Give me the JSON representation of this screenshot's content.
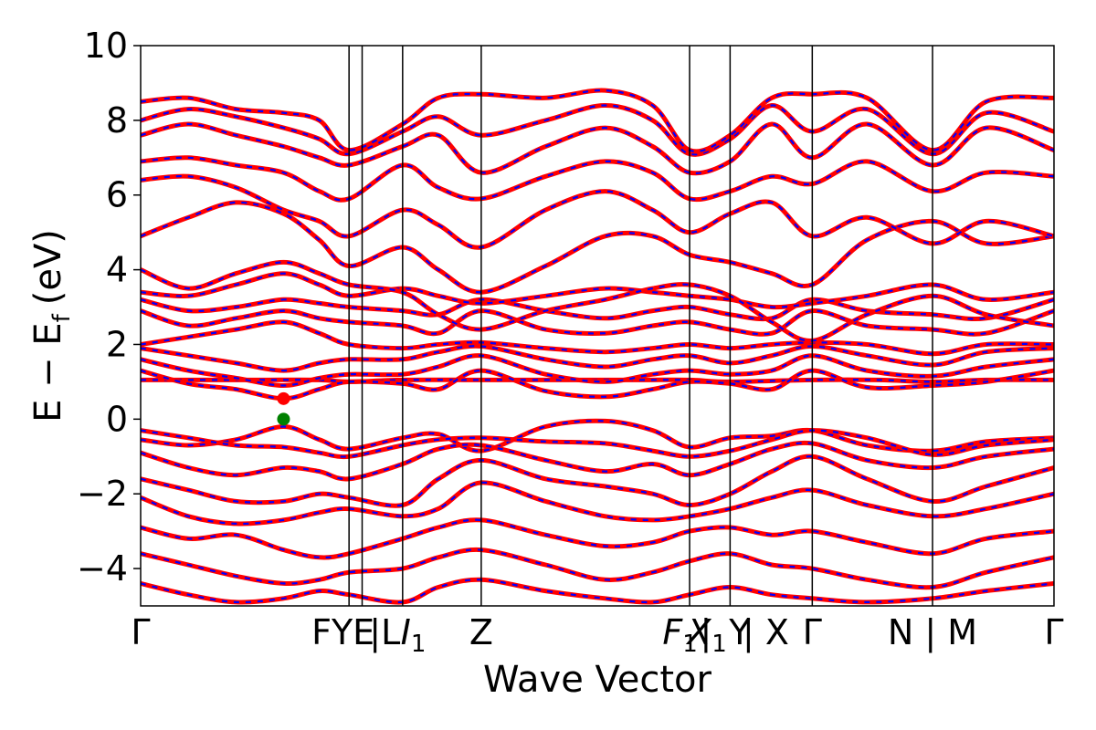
{
  "chart_data": {
    "type": "line",
    "title": "",
    "xlabel": "Wave Vector",
    "ylabel": "E − E",
    "ylabel_sub": "f",
    "ylabel_unit": "(eV)",
    "ylim": [
      -5,
      10
    ],
    "yticks": [
      -4,
      -2,
      0,
      2,
      4,
      6,
      8,
      10
    ],
    "ytick_labels": [
      "−4",
      "−2",
      "0",
      "2",
      "4",
      "6",
      "8",
      "10"
    ],
    "grid": false,
    "legend": "none",
    "colors": {
      "band_solid": "#ff0000",
      "band_dashed": "#0000ff",
      "cbm_marker": "#ff0000",
      "vbm_marker": "#008000",
      "divider": "#000000"
    },
    "kpath_positions": [
      0,
      1.75,
      1.86,
      2.2,
      2.86,
      4.61,
      4.95,
      5.64,
      6.65,
      7.67
    ],
    "kpoint_labels": [
      {
        "pos": 0.0,
        "text": "Γ",
        "sub": ""
      },
      {
        "pos": 1.7,
        "text": "FYE",
        "sub": ""
      },
      {
        "pos": 2.05,
        "text": "|L",
        "sub": ""
      },
      {
        "pos": 2.29,
        "text": "I",
        "sub": "1",
        "italic": true
      },
      {
        "pos": 2.86,
        "text": "Z",
        "sub": ""
      },
      {
        "pos": 4.53,
        "text": "F",
        "sub": "1",
        "italic": true
      },
      {
        "pos": 4.69,
        "text": "X",
        "sub": "",
        "italic": true
      },
      {
        "pos": 4.81,
        "text": "|",
        "sub": "1"
      },
      {
        "pos": 5.03,
        "text": "Y",
        "sub": ""
      },
      {
        "pos": 5.25,
        "text": "| X",
        "sub": ""
      },
      {
        "pos": 5.64,
        "text": "Γ",
        "sub": ""
      },
      {
        "pos": 6.65,
        "text": "N | M",
        "sub": ""
      },
      {
        "pos": 7.67,
        "text": "Γ",
        "sub": ""
      }
    ],
    "bands": [
      {
        "x": [
          0,
          0.4,
          0.8,
          1.2,
          1.5,
          1.75,
          2.2,
          2.5,
          2.86,
          3.4,
          3.9,
          4.3,
          4.61,
          4.95,
          5.3,
          5.64,
          6.1,
          6.65,
          7.1,
          7.67
        ],
        "y": [
          -0.55,
          -0.7,
          -0.55,
          -0.2,
          -0.55,
          -0.8,
          -0.5,
          -0.4,
          -0.85,
          -0.2,
          -0.05,
          -0.3,
          -0.75,
          -0.5,
          -0.45,
          -0.3,
          -0.7,
          -0.85,
          -0.6,
          -0.5
        ]
      },
      {
        "x": [
          0,
          0.4,
          0.8,
          1.2,
          1.5,
          1.75,
          2.2,
          2.5,
          2.86,
          3.4,
          3.9,
          4.3,
          4.61,
          4.95,
          5.3,
          5.64,
          6.1,
          6.65,
          7.1,
          7.67
        ],
        "y": [
          -0.3,
          -0.5,
          -0.7,
          -0.75,
          -0.9,
          -1.0,
          -0.7,
          -0.55,
          -0.5,
          -0.6,
          -0.65,
          -0.85,
          -1.0,
          -0.85,
          -0.55,
          -0.3,
          -0.5,
          -0.95,
          -0.7,
          -0.55
        ]
      },
      {
        "x": [
          0,
          0.4,
          0.8,
          1.2,
          1.5,
          1.75,
          2.2,
          2.5,
          2.86,
          3.4,
          3.9,
          4.3,
          4.61,
          4.95,
          5.3,
          5.64,
          6.1,
          6.65,
          7.1,
          7.67
        ],
        "y": [
          -0.9,
          -1.3,
          -1.5,
          -1.3,
          -1.4,
          -1.6,
          -1.2,
          -0.8,
          -0.7,
          -1.1,
          -1.4,
          -1.2,
          -1.5,
          -1.2,
          -0.8,
          -0.65,
          -1.1,
          -1.3,
          -1.0,
          -0.8
        ]
      },
      {
        "x": [
          0,
          0.4,
          0.8,
          1.2,
          1.5,
          1.75,
          2.2,
          2.5,
          2.86,
          3.4,
          3.9,
          4.3,
          4.61,
          4.95,
          5.3,
          5.64,
          6.1,
          6.65,
          7.1,
          7.67
        ],
        "y": [
          -1.6,
          -1.9,
          -2.2,
          -2.2,
          -2.0,
          -2.1,
          -2.3,
          -1.6,
          -1.1,
          -1.6,
          -1.8,
          -2.0,
          -2.3,
          -2.0,
          -1.4,
          -1.0,
          -1.6,
          -2.2,
          -1.8,
          -1.3
        ]
      },
      {
        "x": [
          0,
          0.4,
          0.8,
          1.2,
          1.5,
          1.75,
          2.2,
          2.5,
          2.86,
          3.4,
          3.9,
          4.3,
          4.61,
          4.95,
          5.3,
          5.64,
          6.1,
          6.65,
          7.1,
          7.67
        ],
        "y": [
          -2.1,
          -2.6,
          -2.8,
          -2.7,
          -2.5,
          -2.4,
          -2.6,
          -2.4,
          -1.7,
          -2.2,
          -2.6,
          -2.7,
          -2.6,
          -2.4,
          -2.1,
          -1.9,
          -2.3,
          -2.6,
          -2.4,
          -2.0
        ]
      },
      {
        "x": [
          0,
          0.4,
          0.8,
          1.2,
          1.5,
          1.75,
          2.2,
          2.5,
          2.86,
          3.4,
          3.9,
          4.3,
          4.61,
          4.95,
          5.3,
          5.64,
          6.1,
          6.65,
          7.1,
          7.67
        ],
        "y": [
          -2.9,
          -3.2,
          -3.1,
          -3.5,
          -3.7,
          -3.6,
          -3.2,
          -2.9,
          -2.7,
          -3.1,
          -3.4,
          -3.3,
          -3.0,
          -2.9,
          -3.1,
          -3.0,
          -3.3,
          -3.6,
          -3.2,
          -3.0
        ]
      },
      {
        "x": [
          0,
          0.4,
          0.8,
          1.2,
          1.5,
          1.75,
          2.2,
          2.5,
          2.86,
          3.4,
          3.9,
          4.3,
          4.61,
          4.95,
          5.3,
          5.64,
          6.1,
          6.65,
          7.1,
          7.67
        ],
        "y": [
          -3.6,
          -3.9,
          -4.2,
          -4.4,
          -4.3,
          -4.1,
          -4.0,
          -3.7,
          -3.5,
          -3.9,
          -4.3,
          -4.1,
          -3.8,
          -3.6,
          -3.9,
          -4.0,
          -4.3,
          -4.5,
          -4.1,
          -3.7
        ]
      },
      {
        "x": [
          0,
          0.4,
          0.8,
          1.2,
          1.5,
          1.75,
          2.2,
          2.5,
          2.86,
          3.4,
          3.9,
          4.3,
          4.61,
          4.95,
          5.3,
          5.64,
          6.1,
          6.65,
          7.1,
          7.67
        ],
        "y": [
          -4.4,
          -4.7,
          -4.9,
          -4.8,
          -4.6,
          -4.7,
          -4.9,
          -4.5,
          -4.3,
          -4.6,
          -4.8,
          -4.9,
          -4.7,
          -4.5,
          -4.7,
          -4.8,
          -4.9,
          -4.8,
          -4.6,
          -4.4
        ]
      },
      {
        "x": [
          0,
          0.5,
          1.0,
          1.5,
          1.75,
          2.2,
          2.86,
          3.5,
          4.2,
          4.61,
          4.95,
          5.64,
          6.2,
          6.65,
          7.1,
          7.67
        ],
        "y": [
          1.05,
          1.05,
          1.05,
          1.05,
          1.0,
          1.05,
          1.05,
          1.05,
          1.05,
          1.05,
          1.0,
          1.05,
          1.05,
          1.0,
          1.05,
          1.05
        ]
      },
      {
        "x": [
          0,
          0.4,
          0.8,
          1.2,
          1.5,
          1.75,
          2.2,
          2.5,
          2.86,
          3.4,
          3.9,
          4.3,
          4.61,
          4.95,
          5.3,
          5.64,
          6.1,
          6.65,
          7.1,
          7.67
        ],
        "y": [
          1.3,
          0.95,
          0.8,
          0.55,
          0.8,
          1.0,
          0.95,
          0.8,
          1.3,
          0.75,
          0.6,
          0.8,
          1.0,
          0.95,
          0.8,
          1.3,
          0.85,
          0.9,
          1.0,
          1.3
        ]
      },
      {
        "x": [
          0,
          0.4,
          0.8,
          1.2,
          1.5,
          1.75,
          2.2,
          2.5,
          2.86,
          3.4,
          3.9,
          4.3,
          4.61,
          4.95,
          5.3,
          5.64,
          6.1,
          6.65,
          7.1,
          7.67
        ],
        "y": [
          1.6,
          1.3,
          1.1,
          0.9,
          1.1,
          1.2,
          1.2,
          1.4,
          1.7,
          1.2,
          1.0,
          1.2,
          1.3,
          1.2,
          1.3,
          1.7,
          1.3,
          1.15,
          1.4,
          1.6
        ]
      },
      {
        "x": [
          0,
          0.4,
          0.8,
          1.2,
          1.5,
          1.75,
          2.2,
          2.5,
          2.86,
          3.4,
          3.9,
          4.3,
          4.61,
          4.95,
          5.3,
          5.64,
          6.1,
          6.65,
          7.1,
          7.67
        ],
        "y": [
          1.9,
          1.7,
          1.5,
          1.3,
          1.5,
          1.6,
          1.6,
          1.8,
          1.95,
          1.6,
          1.4,
          1.6,
          1.7,
          1.5,
          1.7,
          1.95,
          1.7,
          1.45,
          1.8,
          1.9
        ]
      },
      {
        "x": [
          0,
          0.4,
          0.8,
          1.2,
          1.5,
          1.75,
          2.2,
          2.5,
          2.86,
          3.4,
          3.9,
          4.3,
          4.61,
          4.95,
          5.3,
          5.64,
          6.1,
          6.65,
          7.1,
          7.67
        ],
        "y": [
          2.0,
          2.2,
          2.4,
          2.6,
          2.3,
          2.0,
          1.9,
          2.0,
          2.05,
          1.9,
          1.8,
          1.9,
          2.0,
          1.9,
          2.0,
          2.05,
          2.0,
          1.75,
          2.0,
          2.0
        ]
      },
      {
        "x": [
          0,
          0.4,
          0.8,
          1.2,
          1.5,
          1.75,
          2.2,
          2.5,
          2.86,
          3.4,
          3.9,
          4.3,
          4.61,
          4.95,
          5.3,
          5.64,
          6.1,
          6.65,
          7.1,
          7.67
        ],
        "y": [
          2.9,
          2.5,
          2.7,
          2.9,
          2.7,
          2.6,
          2.5,
          2.3,
          2.9,
          2.4,
          2.3,
          2.5,
          2.6,
          2.4,
          2.3,
          2.9,
          2.5,
          2.4,
          2.3,
          2.9
        ]
      },
      {
        "x": [
          0,
          0.4,
          0.8,
          1.2,
          1.5,
          1.75,
          2.2,
          2.5,
          2.86,
          3.4,
          3.9,
          4.3,
          4.61,
          4.95,
          5.3,
          5.64,
          6.1,
          6.65,
          7.1,
          7.67
        ],
        "y": [
          3.2,
          2.9,
          3.0,
          3.2,
          3.1,
          3.0,
          2.9,
          2.8,
          3.2,
          2.9,
          2.7,
          2.9,
          3.0,
          2.8,
          2.7,
          3.2,
          2.9,
          2.8,
          2.7,
          3.2
        ]
      },
      {
        "x": [
          0,
          0.4,
          0.8,
          1.2,
          1.5,
          1.75,
          2.2,
          2.5,
          2.86,
          3.4,
          3.9,
          4.3,
          4.61,
          4.95,
          5.3,
          5.64,
          6.1,
          6.65,
          7.1,
          7.67
        ],
        "y": [
          3.4,
          3.3,
          3.6,
          3.9,
          3.6,
          3.3,
          3.5,
          3.3,
          3.1,
          3.3,
          3.5,
          3.4,
          3.3,
          3.2,
          3.0,
          3.1,
          3.3,
          3.6,
          3.2,
          3.4
        ]
      },
      {
        "x": [
          0,
          0.4,
          0.8,
          1.2,
          1.5,
          1.75,
          2.2,
          2.5,
          2.86,
          3.4,
          3.9,
          4.3,
          4.61,
          4.95,
          5.3,
          5.64,
          6.1,
          6.65,
          7.1,
          7.67
        ],
        "y": [
          4.0,
          3.5,
          3.9,
          4.2,
          3.9,
          3.6,
          3.4,
          2.8,
          2.4,
          2.9,
          3.2,
          3.5,
          3.6,
          3.3,
          2.6,
          2.1,
          2.8,
          3.3,
          2.8,
          2.5
        ]
      },
      {
        "x": [
          0,
          0.4,
          0.8,
          1.2,
          1.5,
          1.75,
          2.2,
          2.5,
          2.86,
          3.4,
          3.9,
          4.3,
          4.61,
          4.95,
          5.3,
          5.64,
          6.1,
          6.65,
          7.1,
          7.67
        ],
        "y": [
          4.9,
          5.4,
          5.8,
          5.5,
          4.8,
          4.1,
          4.6,
          4.0,
          3.4,
          4.1,
          4.9,
          4.9,
          4.4,
          4.2,
          3.9,
          3.6,
          4.8,
          5.3,
          4.7,
          4.9
        ]
      },
      {
        "x": [
          0,
          0.4,
          0.8,
          1.2,
          1.5,
          1.75,
          2.2,
          2.5,
          2.86,
          3.4,
          3.9,
          4.3,
          4.61,
          4.95,
          5.3,
          5.64,
          6.1,
          6.65,
          7.1,
          7.67
        ],
        "y": [
          6.4,
          6.5,
          6.2,
          5.6,
          5.3,
          4.9,
          5.6,
          5.2,
          4.6,
          5.6,
          6.1,
          5.6,
          5.0,
          5.5,
          5.8,
          4.9,
          5.4,
          4.7,
          5.3,
          4.9
        ]
      },
      {
        "x": [
          0,
          0.4,
          0.8,
          1.2,
          1.5,
          1.75,
          2.2,
          2.5,
          2.86,
          3.4,
          3.9,
          4.3,
          4.61,
          4.95,
          5.3,
          5.64,
          6.1,
          6.65,
          7.1,
          7.67
        ],
        "y": [
          6.9,
          7.0,
          6.8,
          6.6,
          6.1,
          5.9,
          6.8,
          6.2,
          5.9,
          6.5,
          6.9,
          6.6,
          5.9,
          6.1,
          6.5,
          6.3,
          6.9,
          6.1,
          6.6,
          6.5
        ]
      },
      {
        "x": [
          0,
          0.4,
          0.8,
          1.2,
          1.5,
          1.75,
          2.2,
          2.5,
          2.86,
          3.4,
          3.9,
          4.3,
          4.61,
          4.95,
          5.3,
          5.64,
          6.1,
          6.65,
          7.1,
          7.67
        ],
        "y": [
          7.6,
          7.9,
          7.6,
          7.3,
          7.0,
          6.8,
          7.3,
          7.6,
          6.6,
          7.3,
          7.8,
          7.3,
          6.6,
          6.9,
          7.9,
          7.0,
          7.9,
          6.8,
          7.8,
          7.2
        ]
      },
      {
        "x": [
          0,
          0.4,
          0.8,
          1.2,
          1.5,
          1.75,
          2.2,
          2.5,
          2.86,
          3.4,
          3.9,
          4.3,
          4.61,
          4.95,
          5.3,
          5.64,
          6.1,
          6.65,
          7.1,
          7.67
        ],
        "y": [
          8.0,
          8.3,
          8.1,
          7.8,
          7.5,
          7.1,
          7.7,
          8.1,
          7.6,
          8.0,
          8.4,
          8.0,
          7.1,
          7.5,
          8.4,
          7.7,
          8.3,
          7.1,
          8.2,
          7.7
        ]
      },
      {
        "x": [
          0,
          0.4,
          0.8,
          1.2,
          1.5,
          1.75,
          2.2,
          2.5,
          2.86,
          3.4,
          3.9,
          4.3,
          4.61,
          4.95,
          5.3,
          5.64,
          6.1,
          6.65,
          7.1,
          7.67
        ],
        "y": [
          8.5,
          8.6,
          8.3,
          8.2,
          8.0,
          7.2,
          7.9,
          8.6,
          8.7,
          8.6,
          8.8,
          8.4,
          7.2,
          7.6,
          8.6,
          8.7,
          8.6,
          7.2,
          8.5,
          8.6
        ]
      }
    ],
    "markers": [
      {
        "x": 1.2,
        "y": 0.55,
        "color": "#ff0000"
      },
      {
        "x": 1.2,
        "y": 0.0,
        "color": "#008000"
      }
    ]
  }
}
